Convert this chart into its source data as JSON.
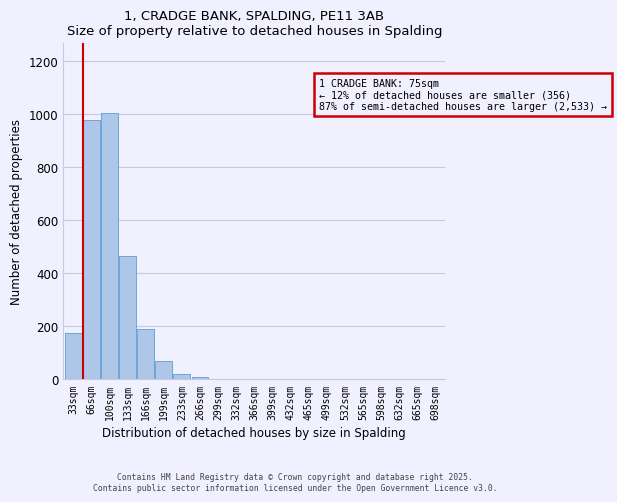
{
  "title": "1, CRADGE BANK, SPALDING, PE11 3AB",
  "subtitle": "Size of property relative to detached houses in Spalding",
  "xlabel": "Distribution of detached houses by size in Spalding",
  "ylabel": "Number of detached properties",
  "bar_labels": [
    "33sqm",
    "66sqm",
    "100sqm",
    "133sqm",
    "166sqm",
    "199sqm",
    "233sqm",
    "266sqm",
    "299sqm",
    "332sqm",
    "366sqm",
    "399sqm",
    "432sqm",
    "465sqm",
    "499sqm",
    "532sqm",
    "565sqm",
    "598sqm",
    "632sqm",
    "665sqm",
    "698sqm"
  ],
  "bar_values": [
    175,
    980,
    1005,
    465,
    190,
    70,
    22,
    10,
    0,
    0,
    0,
    0,
    0,
    0,
    0,
    0,
    0,
    0,
    0,
    0,
    0
  ],
  "bar_color": "#aec6e8",
  "bar_edge_color": "#5a9fd4",
  "vline_color": "#cc0000",
  "vline_x_index": 0.57,
  "annotation_title": "1 CRADGE BANK: 75sqm",
  "annotation_line1": "← 12% of detached houses are smaller (356)",
  "annotation_line2": "87% of semi-detached houses are larger (2,533) →",
  "annotation_box_color": "#cc0000",
  "ylim": [
    0,
    1270
  ],
  "yticks": [
    0,
    200,
    400,
    600,
    800,
    1000,
    1200
  ],
  "footer1": "Contains HM Land Registry data © Crown copyright and database right 2025.",
  "footer2": "Contains public sector information licensed under the Open Government Licence v3.0.",
  "background_color": "#f0f0ff",
  "grid_color": "#c8c8e0"
}
